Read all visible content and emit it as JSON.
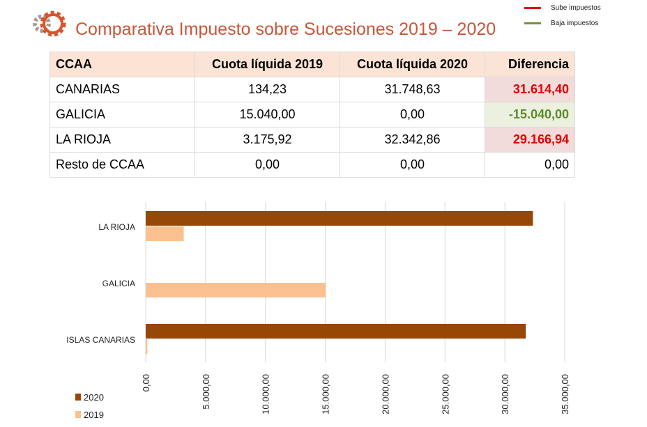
{
  "title": "Comparativa Impuesto sobre Sucesiones 2019 – 2020",
  "legend_top": [
    {
      "label": "Sube impuestos",
      "color": "#e00000"
    },
    {
      "label": "Baja impuestos",
      "color": "#76923c"
    }
  ],
  "table": {
    "headers": [
      "CCAA",
      "Cuota líquida 2019",
      "Cuota líquida 2020",
      "Diferencia"
    ],
    "rows": [
      {
        "cells": [
          "CANARIAS",
          "134,23",
          "31.748,63",
          "31.614,40"
        ],
        "status": "up"
      },
      {
        "cells": [
          "GALICIA",
          "15.040,00",
          "0,00",
          "-15.040,00"
        ],
        "status": "down"
      },
      {
        "cells": [
          "LA RIOJA",
          "3.175,92",
          "32.342,86",
          "29.166,94"
        ],
        "status": "up"
      },
      {
        "cells": [
          "Resto de CCAA",
          "0,00",
          "0,00",
          "0,00"
        ],
        "status": ""
      }
    ]
  },
  "chart_data": {
    "type": "bar",
    "orientation": "horizontal",
    "categories": [
      "LA RIOJA",
      "GALICIA",
      "ISLAS CANARIAS"
    ],
    "series": [
      {
        "name": "2020",
        "color": "#974706",
        "values": [
          32342.86,
          0,
          31748.63
        ]
      },
      {
        "name": "2019",
        "color": "#fac090",
        "values": [
          3175.92,
          15040,
          134.23
        ]
      }
    ],
    "xlim": [
      0,
      35000
    ],
    "xticks": [
      "0,00",
      "5.000,00",
      "10.000,00",
      "15.000,00",
      "20.000,00",
      "25.000,00",
      "30.000,00",
      "35.000,00"
    ],
    "grid": true,
    "legend": "bottom-left"
  }
}
